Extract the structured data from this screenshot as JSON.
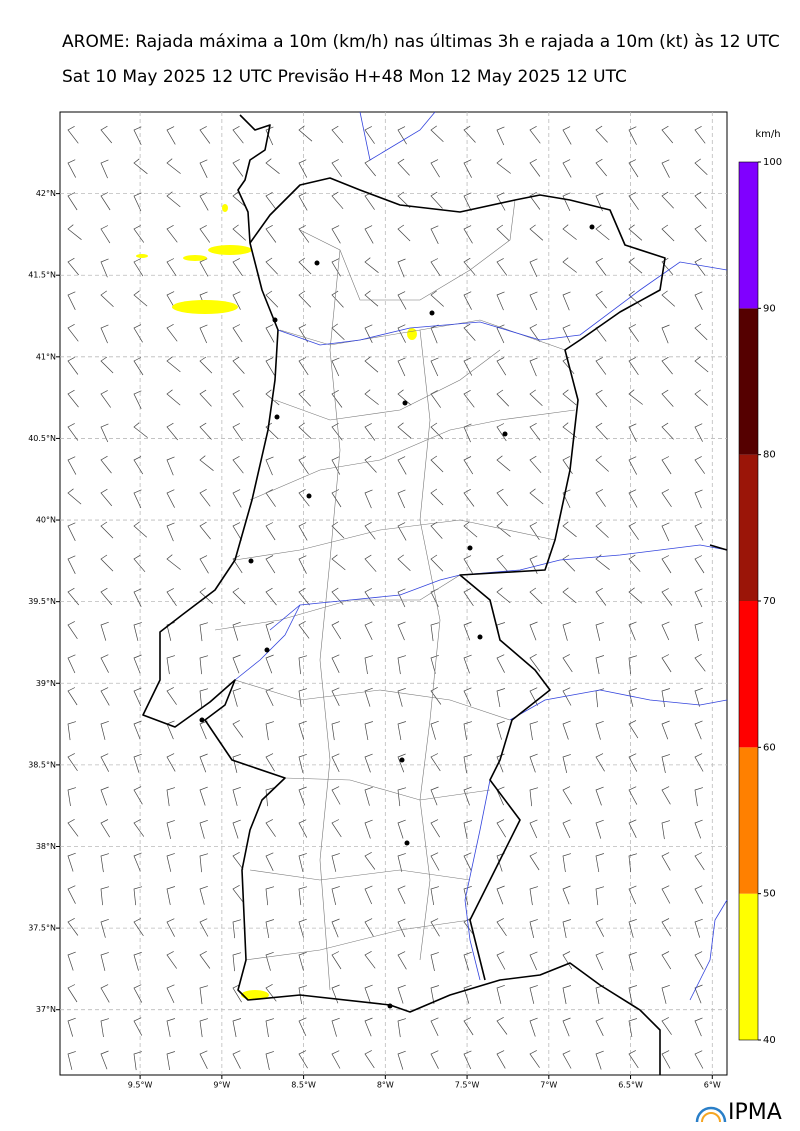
{
  "header": {
    "title": "AROME: Rajada máxima a 10m (km/h) nas últimas 3h e rajada a 10m (kt) às 12 UTC",
    "subtitle": "Sat 10 May 2025 12 UTC Previsão H+48 Mon 12 May 2025 12 UTC"
  },
  "map": {
    "xlim": [
      -9.99,
      -5.91
    ],
    "ylim": [
      36.6,
      42.5
    ],
    "lat_ticks": [
      {
        "value": 42,
        "label": "42°N"
      },
      {
        "value": 41.5,
        "label": "41.5°N"
      },
      {
        "value": 41,
        "label": "41°N"
      },
      {
        "value": 40.5,
        "label": "40.5°N"
      },
      {
        "value": 40,
        "label": "40°N"
      },
      {
        "value": 39.5,
        "label": "39.5°N"
      },
      {
        "value": 39,
        "label": "39°N"
      },
      {
        "value": 38.5,
        "label": "38.5°N"
      },
      {
        "value": 38,
        "label": "38°N"
      },
      {
        "value": 37.5,
        "label": "37.5°N"
      },
      {
        "value": 37,
        "label": "37°N"
      }
    ],
    "lon_ticks": [
      {
        "value": -9.5,
        "label": "9.5°W"
      },
      {
        "value": -9,
        "label": "9°W"
      },
      {
        "value": -8.5,
        "label": "8.5°W"
      },
      {
        "value": -8,
        "label": "8°W"
      },
      {
        "value": -7.5,
        "label": "7.5°W"
      },
      {
        "value": -7,
        "label": "7°W"
      },
      {
        "value": -6.5,
        "label": "6.5°W"
      },
      {
        "value": -6,
        "label": "6°W"
      }
    ]
  },
  "colorbar": {
    "unit": "km/h",
    "ticks": [
      40,
      50,
      60,
      70,
      80,
      90,
      100
    ],
    "colors": [
      "#ffff00",
      "#ff8000",
      "#ff0000",
      "#9b1508",
      "#550000",
      "#8000ff"
    ]
  },
  "logo": "IPMA"
}
